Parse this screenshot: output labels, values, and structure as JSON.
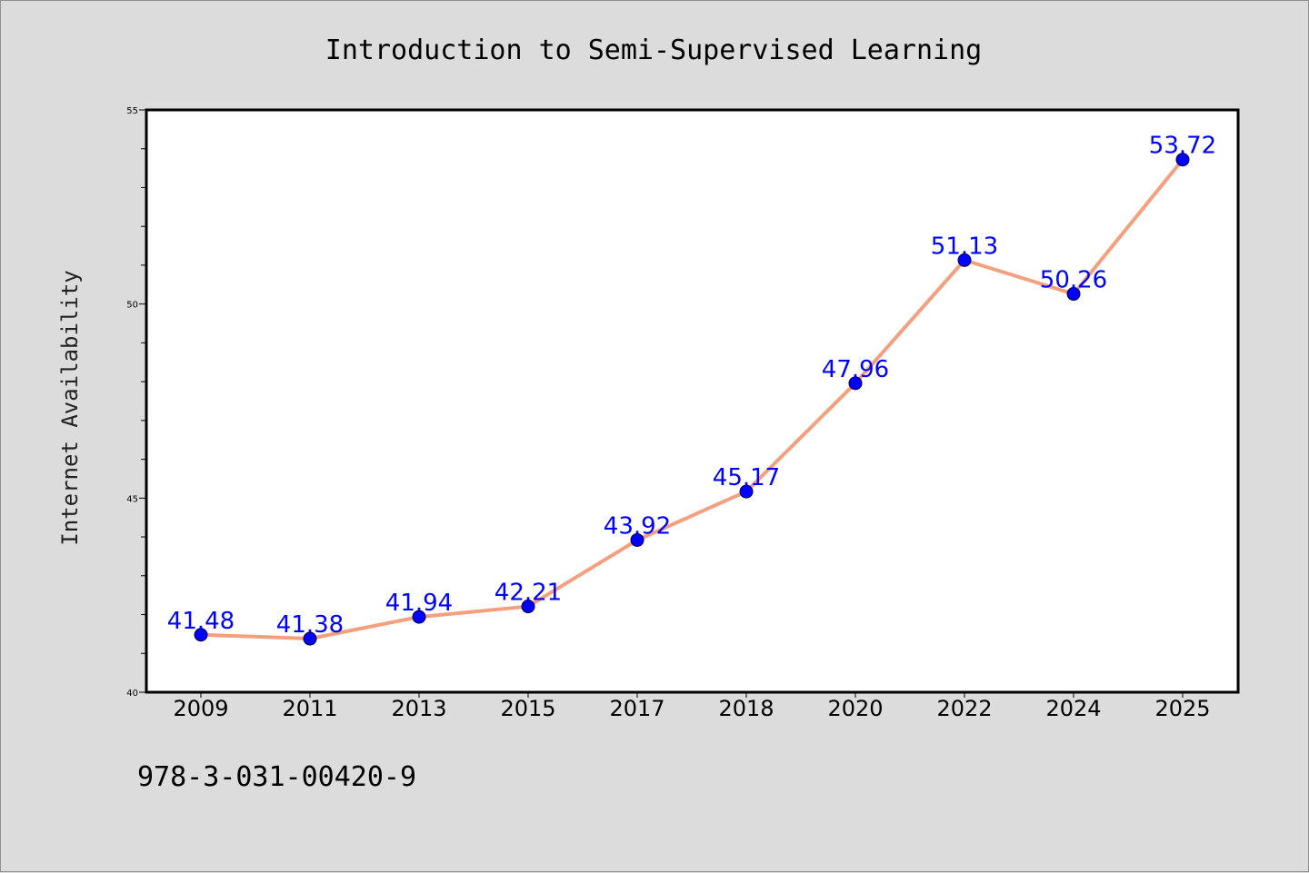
{
  "chart_data": {
    "type": "line",
    "title": "Introduction to Semi-Supervised Learning",
    "xlabel": "",
    "ylabel": "Internet Availability",
    "categories": [
      "2009",
      "2011",
      "2013",
      "2015",
      "2017",
      "2018",
      "2020",
      "2022",
      "2024",
      "2025"
    ],
    "series": [
      {
        "values": [
          41.48,
          41.38,
          41.94,
          42.21,
          43.92,
          45.17,
          47.96,
          51.13,
          50.26,
          53.72
        ],
        "labels": [
          "41.48",
          "41.38",
          "41.94",
          "42.21",
          "43.92",
          "45.17",
          "47.96",
          "51.13",
          "50.26",
          "53.72"
        ],
        "line_color": "#f4a07e",
        "marker_color": "#0000ff"
      }
    ],
    "ylim": [
      40,
      55
    ],
    "yticks_major": [
      40,
      45,
      50,
      55
    ],
    "yticks_major_labels": [
      "40",
      "45",
      "50",
      "55"
    ],
    "ytick_minor_step": 1,
    "grid": false,
    "legend": "none"
  },
  "footer": {
    "isbn": "978-3-031-00420-9"
  },
  "colors": {
    "background": "#dcdcdc",
    "plot_background": "#ffffff",
    "data_label": "#0000ff"
  }
}
